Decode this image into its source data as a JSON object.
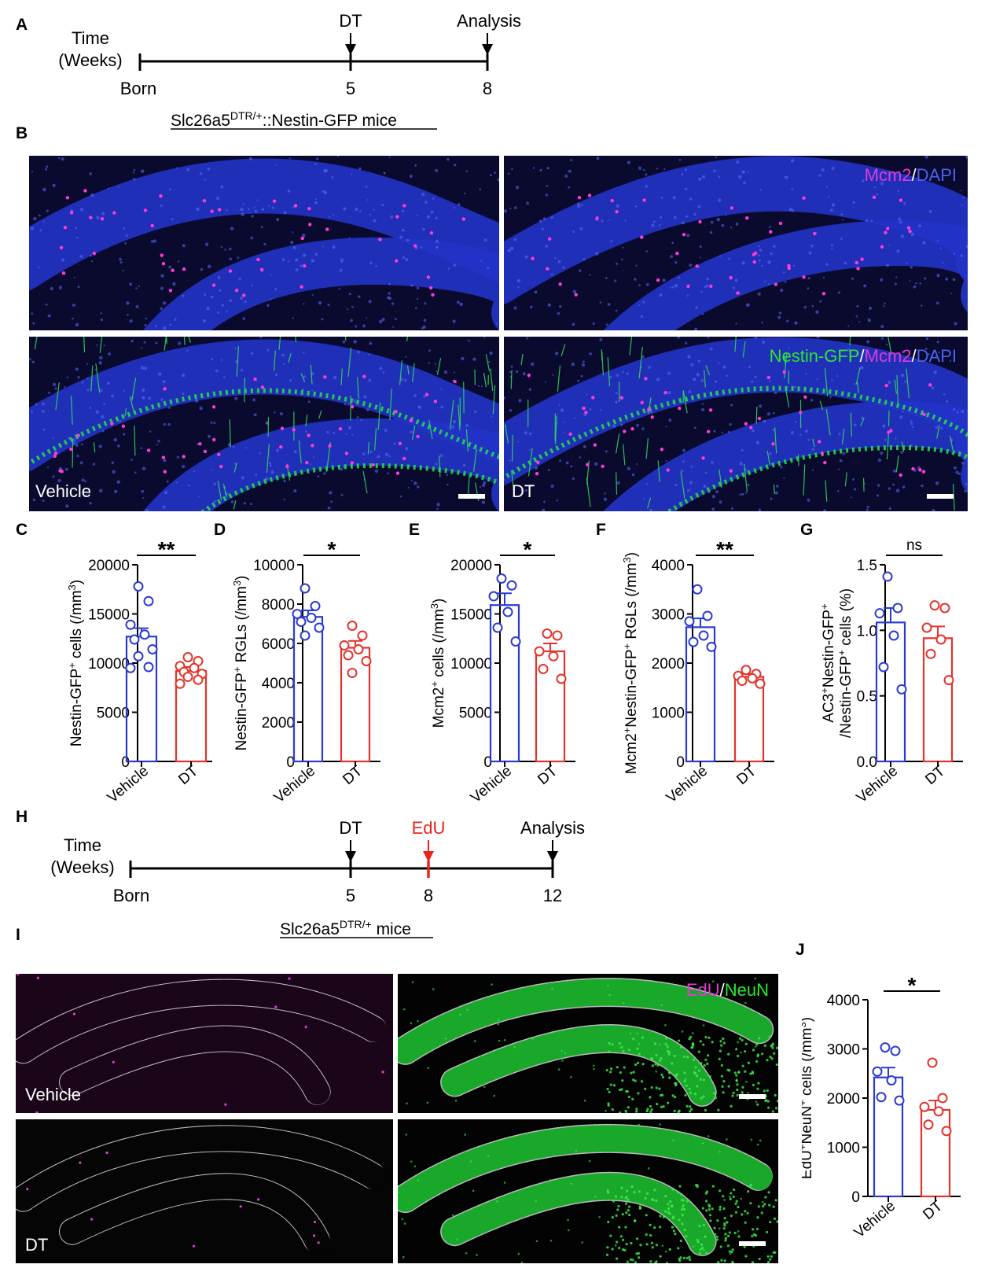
{
  "panel_letters": [
    "A",
    "B",
    "C",
    "D",
    "E",
    "F",
    "G",
    "H",
    "I",
    "J"
  ],
  "timeline_a": {
    "time_label_1": "Time",
    "time_label_2": "(Weeks)",
    "events": [
      {
        "week": 0,
        "tick": "Born",
        "top": ""
      },
      {
        "week": 5,
        "tick": "5",
        "top": "DT"
      },
      {
        "week": 8,
        "tick": "8",
        "top": "Analysis"
      }
    ],
    "mouse_line": {
      "base": "Slc26a5",
      "sup": "DTR/+",
      "rest": "::Nestin-GFP mice"
    }
  },
  "panel_b": {
    "stain_top": [
      {
        "text": "Mcm2",
        "color": "#e23ad6"
      },
      {
        "text": "/",
        "color": "#ffffff"
      },
      {
        "text": "DAPI",
        "color": "#4b62f0"
      }
    ],
    "stain_bottom": [
      {
        "text": "Nestin-GFP",
        "color": "#2ee62e"
      },
      {
        "text": "/",
        "color": "#ffffff"
      },
      {
        "text": "Mcm2",
        "color": "#e23ad6"
      },
      {
        "text": "/",
        "color": "#ffffff"
      },
      {
        "text": "DAPI",
        "color": "#4b62f0"
      }
    ],
    "cond_left": "Vehicle",
    "cond_right": "DT"
  },
  "timeline_h": {
    "time_label_1": "Time",
    "time_label_2": "(Weeks)",
    "events": [
      {
        "week": 0,
        "tick": "Born",
        "top": ""
      },
      {
        "week": 5,
        "tick": "5",
        "top": "DT"
      },
      {
        "week": 8,
        "tick": "8",
        "top": "EdU"
      },
      {
        "week": 12,
        "tick": "12",
        "top": "Analysis"
      }
    ],
    "edu_color": "#e8241c",
    "mouse_line": {
      "base": "Slc26a5",
      "sup": "DTR/+",
      "rest": " mice"
    }
  },
  "panel_i": {
    "stain": [
      {
        "text": "EdU",
        "color": "#e23ad6"
      },
      {
        "text": "/",
        "color": "#ffffff"
      },
      {
        "text": "NeuN",
        "color": "#2ee62e"
      }
    ],
    "cond_top": "Vehicle",
    "cond_bottom": "DT"
  },
  "colors": {
    "vehicle": "#2b3bd1",
    "dt": "#e3342b"
  },
  "chart_data": [
    {
      "id": "C",
      "type": "bar",
      "categories": [
        "Vehicle",
        "DT"
      ],
      "ylabel": {
        "pre": "Nestin-GFP",
        "sup1": "+",
        "mid": " cells (/mm",
        "sup2": "3",
        "post": ")"
      },
      "ylim": [
        0,
        20000
      ],
      "yticks": [
        "0",
        "5000",
        "10000",
        "15000",
        "20000"
      ],
      "means": [
        12700,
        9200
      ],
      "sem": [
        850,
        400
      ],
      "points": [
        [
          17800,
          16300,
          13900,
          12900,
          12400,
          11400,
          10700,
          9600,
          9500
        ],
        [
          10600,
          10200,
          9700,
          9500,
          9100,
          8900,
          8600,
          8300,
          7900
        ]
      ],
      "significance": "**"
    },
    {
      "id": "D",
      "type": "bar",
      "categories": [
        "Vehicle",
        "DT"
      ],
      "ylabel": {
        "pre": "Nestin-GFP",
        "sup1": "+",
        "mid": " RGLs (/mm",
        "sup2": "3",
        "post": ")"
      },
      "ylim": [
        0,
        10000
      ],
      "yticks": [
        "0",
        "2000",
        "4000",
        "6000",
        "8000",
        "10000"
      ],
      "means": [
        7350,
        5780
      ],
      "sem": [
        330,
        350
      ],
      "points": [
        [
          8800,
          7900,
          7500,
          7300,
          7100,
          6800,
          6400
        ],
        [
          6900,
          6400,
          5900,
          5700,
          5400,
          5100,
          4500
        ]
      ],
      "significance": "*"
    },
    {
      "id": "E",
      "type": "bar",
      "categories": [
        "Vehicle",
        "DT"
      ],
      "ylabel": {
        "pre": "Mcm2",
        "sup1": "+",
        "mid": " cells (/mm",
        "sup2": "3",
        "post": ")"
      },
      "ylim": [
        0,
        20000
      ],
      "yticks": [
        "0",
        "5000",
        "10000",
        "15000",
        "20000"
      ],
      "means": [
        15900,
        11200
      ],
      "sem": [
        1200,
        800
      ],
      "points": [
        [
          18600,
          17900,
          16800,
          15200,
          13600,
          12200
        ],
        [
          13000,
          12800,
          11200,
          10700,
          9400,
          8400
        ]
      ],
      "significance": "*"
    },
    {
      "id": "F",
      "type": "bar",
      "categories": [
        "Vehicle",
        "DT"
      ],
      "ylabel": {
        "pre": "Mcm2",
        "sup1": "+",
        "mid": "Nestin-GFP",
        "sup2": "+",
        "post": " RGLs (/mm",
        "sup3": "3",
        "post2": ")"
      },
      "ylim": [
        0,
        4000
      ],
      "yticks": [
        "0",
        "1000",
        "2000",
        "3000",
        "4000"
      ],
      "means": [
        2730,
        1720
      ],
      "sem": [
        180,
        60
      ],
      "points": [
        [
          3500,
          2960,
          2850,
          2560,
          2430,
          2330
        ],
        [
          1860,
          1780,
          1740,
          1690,
          1640,
          1580
        ]
      ],
      "significance": "**"
    },
    {
      "id": "G",
      "type": "bar",
      "categories": [
        "Vehicle",
        "DT"
      ],
      "ylabel": {
        "line1_pre": "AC3",
        "line1_sup1": "+",
        "line1_mid": "Nestin-GFP",
        "line1_sup2": "+",
        "line2_pre": "/Nestin-GFP",
        "line2_sup": "+",
        "line2_post": " cells (%)"
      },
      "ylim": [
        0,
        1.5
      ],
      "yticks": [
        "0.0",
        "0.5",
        "1.0",
        "1.5"
      ],
      "means": [
        1.06,
        0.94
      ],
      "sem": [
        0.11,
        0.09
      ],
      "points": [
        [
          1.41,
          1.17,
          1.13,
          0.96,
          0.72,
          0.55
        ],
        [
          1.19,
          1.17,
          1.02,
          0.93,
          0.82,
          0.62
        ]
      ],
      "significance": "ns"
    },
    {
      "id": "J",
      "type": "bar",
      "categories": [
        "Vehicle",
        "DT"
      ],
      "ylabel": {
        "pre": "EdU",
        "sup1": "+",
        "mid": "NeuN",
        "sup2": "+",
        "post": " cells (/mm",
        "sup3": "3",
        "post2": ")"
      },
      "ylim": [
        0,
        4000
      ],
      "yticks": [
        "0",
        "1000",
        "2000",
        "3000",
        "4000"
      ],
      "means": [
        2420,
        1760
      ],
      "sem": [
        200,
        190
      ],
      "points": [
        [
          3030,
          2960,
          2540,
          2360,
          2020,
          1950
        ],
        [
          2720,
          2000,
          1820,
          1730,
          1460,
          1330
        ]
      ],
      "significance": "*"
    }
  ]
}
